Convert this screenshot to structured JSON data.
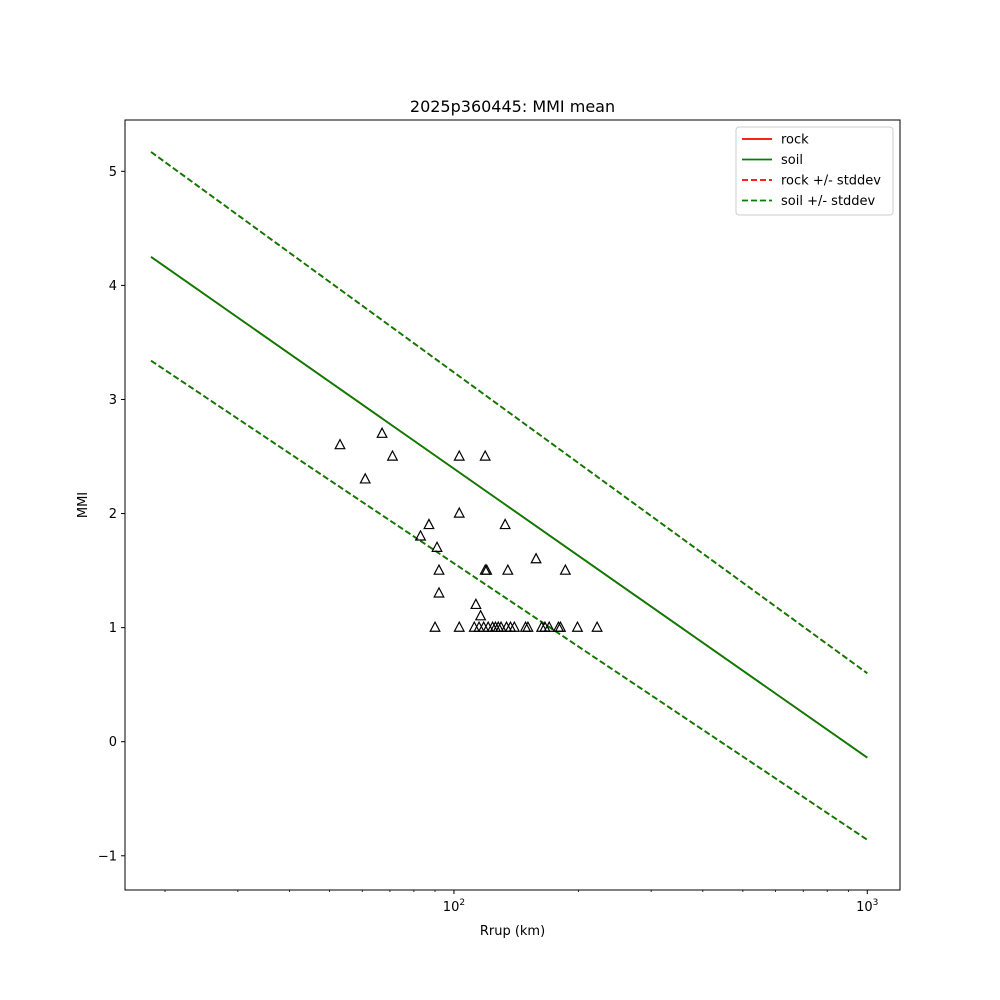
{
  "chart_data": {
    "type": "scatter",
    "title": "2025p360445: MMI mean",
    "xlabel": "Rrup (km)",
    "ylabel": "MMI",
    "x_scale": "log",
    "xlim": [
      16,
      1200
    ],
    "ylim": [
      -1.3,
      5.45
    ],
    "x_ticks": [
      {
        "value": 100,
        "base": "10",
        "exp": "2"
      },
      {
        "value": 1000,
        "base": "10",
        "exp": "3"
      }
    ],
    "y_ticks": [
      -1,
      0,
      1,
      2,
      3,
      4,
      5
    ],
    "y_tick_labels": [
      "−1",
      "0",
      "1",
      "2",
      "3",
      "4",
      "5"
    ],
    "legend_position": "top-right",
    "series": [
      {
        "name": "rock",
        "style": "solid",
        "color": "#ff0000",
        "x": [
          18.5,
          1000
        ],
        "y": [
          4.25,
          -0.14
        ]
      },
      {
        "name": "soil",
        "style": "solid",
        "color": "#008000",
        "x": [
          18.5,
          1000
        ],
        "y": [
          4.25,
          -0.14
        ]
      },
      {
        "name": "rock +/- stddev",
        "style": "dashed",
        "color": "#ff0000",
        "x": [
          18.5,
          1000
        ],
        "y_upper": [
          5.17,
          0.6
        ],
        "y_lower": [
          3.34,
          -0.86
        ]
      },
      {
        "name": "soil +/- stddev",
        "style": "dashed",
        "color": "#008000",
        "x": [
          18.5,
          1000
        ],
        "y_upper": [
          5.17,
          0.6
        ],
        "y_lower": [
          3.34,
          -0.86
        ]
      }
    ],
    "observations": {
      "marker": "triangle",
      "points": [
        [
          53,
          2.6
        ],
        [
          61,
          2.3
        ],
        [
          67,
          2.7
        ],
        [
          71,
          2.5
        ],
        [
          83,
          1.8
        ],
        [
          87,
          1.9
        ],
        [
          90,
          1.0
        ],
        [
          91,
          1.7
        ],
        [
          92,
          1.5
        ],
        [
          92,
          1.3
        ],
        [
          103,
          2.5
        ],
        [
          103,
          2.0
        ],
        [
          103,
          1.0
        ],
        [
          112,
          1.0
        ],
        [
          113,
          1.2
        ],
        [
          115,
          1.0
        ],
        [
          116,
          1.1
        ],
        [
          118,
          1.0
        ],
        [
          119,
          2.5
        ],
        [
          119,
          1.5
        ],
        [
          120,
          1.5
        ],
        [
          121,
          1.0
        ],
        [
          124,
          1.0
        ],
        [
          126,
          1.0
        ],
        [
          128,
          1.0
        ],
        [
          130,
          1.0
        ],
        [
          133,
          1.9
        ],
        [
          134,
          1.0
        ],
        [
          135,
          1.5
        ],
        [
          137,
          1.0
        ],
        [
          140,
          1.0
        ],
        [
          149,
          1.0
        ],
        [
          151,
          1.0
        ],
        [
          158,
          1.6
        ],
        [
          163,
          1.0
        ],
        [
          166,
          1.0
        ],
        [
          170,
          1.0
        ],
        [
          179,
          1.0
        ],
        [
          181,
          1.0
        ],
        [
          186,
          1.5
        ],
        [
          199,
          1.0
        ],
        [
          222,
          1.0
        ]
      ]
    }
  }
}
